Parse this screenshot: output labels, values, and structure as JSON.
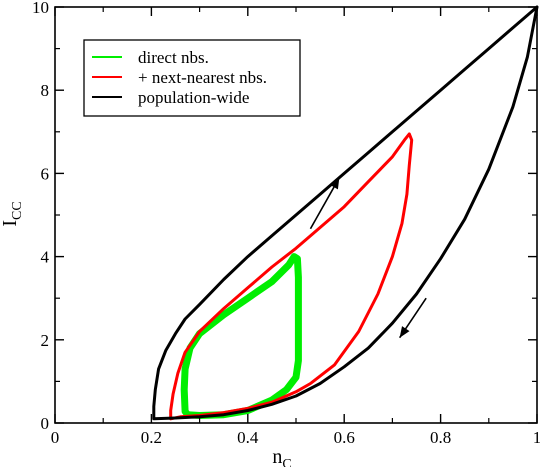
{
  "chart_data": {
    "type": "line",
    "xlabel": "n",
    "xlabel_sub": "C",
    "ylabel": "I",
    "ylabel_sub": "CC",
    "xlim": [
      0,
      1
    ],
    "ylim": [
      0,
      10
    ],
    "x_ticks": [
      0,
      0.2,
      0.4,
      0.6,
      0.8,
      1
    ],
    "x_tick_labels": [
      "0",
      "0.2",
      "0.4",
      "0.6",
      "0.8",
      "1"
    ],
    "y_ticks": [
      0,
      2,
      4,
      6,
      8,
      10
    ],
    "y_tick_labels": [
      "0",
      "2",
      "4",
      "6",
      "8",
      "10"
    ],
    "grid": false,
    "legend_position": "top-left",
    "series": [
      {
        "name": "direct nbs.",
        "color": "#00ee00",
        "stroke_width": 7,
        "points": [
          [
            0.27,
            0.28
          ],
          [
            0.275,
            0.2
          ],
          [
            0.3,
            0.18
          ],
          [
            0.35,
            0.2
          ],
          [
            0.4,
            0.3
          ],
          [
            0.45,
            0.55
          ],
          [
            0.48,
            0.8
          ],
          [
            0.5,
            1.1
          ],
          [
            0.505,
            1.5
          ],
          [
            0.505,
            2.5
          ],
          [
            0.505,
            3.5
          ],
          [
            0.503,
            3.95
          ],
          [
            0.496,
            4.0
          ],
          [
            0.485,
            3.8
          ],
          [
            0.45,
            3.4
          ],
          [
            0.4,
            3.0
          ],
          [
            0.35,
            2.6
          ],
          [
            0.3,
            2.15
          ],
          [
            0.28,
            1.8
          ],
          [
            0.27,
            1.3
          ],
          [
            0.268,
            0.8
          ],
          [
            0.27,
            0.28
          ]
        ]
      },
      {
        "name": "+ next-nearest nbs.",
        "color": "#ff0000",
        "stroke_width": 3,
        "points": [
          [
            0.24,
            0.1
          ],
          [
            0.24,
            0.3
          ],
          [
            0.245,
            0.7
          ],
          [
            0.255,
            1.2
          ],
          [
            0.27,
            1.7
          ],
          [
            0.3,
            2.2
          ],
          [
            0.35,
            2.75
          ],
          [
            0.4,
            3.25
          ],
          [
            0.45,
            3.75
          ],
          [
            0.5,
            4.2
          ],
          [
            0.55,
            4.7
          ],
          [
            0.6,
            5.2
          ],
          [
            0.65,
            5.8
          ],
          [
            0.7,
            6.4
          ],
          [
            0.725,
            6.8
          ],
          [
            0.735,
            6.95
          ],
          [
            0.74,
            6.8
          ],
          [
            0.735,
            6.2
          ],
          [
            0.73,
            5.5
          ],
          [
            0.72,
            4.8
          ],
          [
            0.7,
            4.0
          ],
          [
            0.67,
            3.1
          ],
          [
            0.63,
            2.2
          ],
          [
            0.58,
            1.4
          ],
          [
            0.53,
            0.95
          ],
          [
            0.5,
            0.75
          ],
          [
            0.45,
            0.5
          ],
          [
            0.4,
            0.35
          ],
          [
            0.35,
            0.25
          ],
          [
            0.3,
            0.18
          ],
          [
            0.26,
            0.15
          ],
          [
            0.24,
            0.1
          ]
        ]
      },
      {
        "name": "population-wide",
        "color": "#000000",
        "stroke_width": 3,
        "points": [
          [
            1.0,
            10.0
          ],
          [
            0.95,
            9.5
          ],
          [
            0.9,
            9.0
          ],
          [
            0.85,
            8.5
          ],
          [
            0.8,
            8.0
          ],
          [
            0.75,
            7.5
          ],
          [
            0.7,
            7.0
          ],
          [
            0.65,
            6.5
          ],
          [
            0.6,
            6.0
          ],
          [
            0.55,
            5.5
          ],
          [
            0.5,
            5.0
          ],
          [
            0.45,
            4.5
          ],
          [
            0.4,
            4.0
          ],
          [
            0.35,
            3.45
          ],
          [
            0.3,
            2.85
          ],
          [
            0.27,
            2.5
          ],
          [
            0.25,
            2.15
          ],
          [
            0.23,
            1.75
          ],
          [
            0.215,
            1.3
          ],
          [
            0.208,
            0.8
          ],
          [
            0.205,
            0.4
          ],
          [
            0.205,
            0.1
          ],
          [
            0.25,
            0.12
          ],
          [
            0.3,
            0.15
          ],
          [
            0.35,
            0.2
          ],
          [
            0.4,
            0.3
          ],
          [
            0.45,
            0.45
          ],
          [
            0.5,
            0.65
          ],
          [
            0.55,
            0.95
          ],
          [
            0.6,
            1.35
          ],
          [
            0.65,
            1.8
          ],
          [
            0.7,
            2.4
          ],
          [
            0.75,
            3.1
          ],
          [
            0.8,
            3.95
          ],
          [
            0.85,
            4.9
          ],
          [
            0.9,
            6.1
          ],
          [
            0.95,
            7.6
          ],
          [
            0.98,
            8.8
          ],
          [
            1.0,
            10.0
          ]
        ]
      }
    ],
    "arrows": [
      {
        "from": [
          0.53,
          4.67
        ],
        "to": [
          0.59,
          5.9
        ]
      },
      {
        "from": [
          0.77,
          3.0
        ],
        "to": [
          0.715,
          2.05
        ]
      }
    ]
  }
}
